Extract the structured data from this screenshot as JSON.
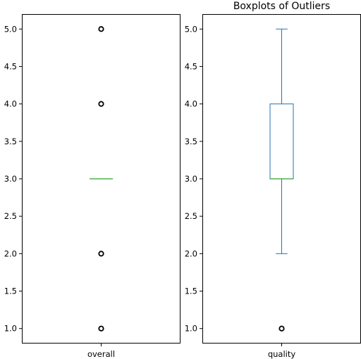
{
  "chart_data": [
    {
      "type": "boxplot",
      "title": "",
      "category": "overall",
      "ylim": [
        0.8,
        5.2
      ],
      "yticks": [
        "1.0",
        "1.5",
        "2.0",
        "2.5",
        "3.0",
        "3.5",
        "4.0",
        "4.5",
        "5.0"
      ],
      "box": {
        "q1": 3.0,
        "median": 3.0,
        "q3": 3.0,
        "whisker_low": 3.0,
        "whisker_high": 3.0
      },
      "outliers": [
        1.0,
        2.0,
        4.0,
        5.0
      ]
    },
    {
      "type": "boxplot",
      "title": "Boxplots of Outliers",
      "category": "quality",
      "ylim": [
        0.8,
        5.2
      ],
      "yticks": [
        "1.0",
        "1.5",
        "2.0",
        "2.5",
        "3.0",
        "3.5",
        "4.0",
        "4.5",
        "5.0"
      ],
      "box": {
        "q1": 3.0,
        "median": 3.0,
        "q3": 4.0,
        "whisker_low": 2.0,
        "whisker_high": 5.0
      },
      "outliers": [
        1.0
      ]
    }
  ],
  "colors": {
    "box": "#1f77b4",
    "median": "#2ca02c",
    "outlier": "#000000",
    "axes": "#000000"
  }
}
